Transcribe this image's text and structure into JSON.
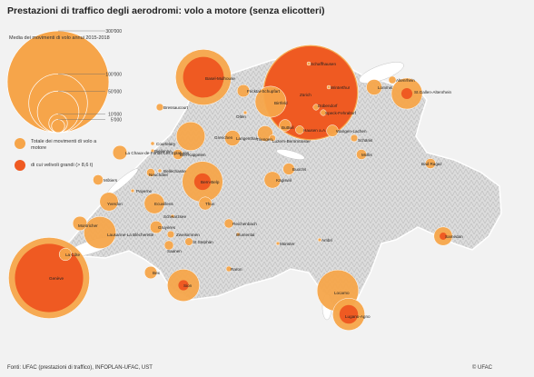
{
  "title": "Prestazioni di traffico degli aerodromi: volo a motore (senza elicotteri)",
  "legend": {
    "subtitle": "Media dei movimenti di volo annui 2015-2018",
    "scale_labels": [
      "300'000",
      "100'000",
      "50'000",
      "10'000",
      "5'000"
    ],
    "scale_values": [
      300000,
      100000,
      50000,
      10000,
      5000
    ],
    "total_label": "Totale dei movimenti di volo a motore",
    "large_label": "di cui velivoli grandi (> 8,6 t)",
    "colors": {
      "total": "#f6a54a",
      "large": "#ef5a22",
      "mountain_light": "#f0f0f0",
      "mountain_dark": "#cfcfcf",
      "lake": "#ffffff"
    }
  },
  "airports": [
    {
      "name": "Schaffhausen",
      "total": 300,
      "large": 0
    },
    {
      "name": "Basel-Mulhouse",
      "total": 90000,
      "large": 48000
    },
    {
      "name": "Fricktal-Schupfart",
      "total": 4500,
      "large": 0
    },
    {
      "name": "Zürich",
      "total": 265000,
      "large": 250000
    },
    {
      "name": "Altenrhein",
      "total": 1600,
      "large": 0
    },
    {
      "name": "Birrfeld",
      "total": 28000,
      "large": 0
    },
    {
      "name": "Winterthur",
      "total": 300,
      "large": 0
    },
    {
      "name": "Lommis",
      "total": 7000,
      "large": 0
    },
    {
      "name": "Dübendorf",
      "total": 1000,
      "large": 0
    },
    {
      "name": "Speck-Fehraltorf",
      "total": 1000,
      "large": 0
    },
    {
      "name": "Bressaucourt",
      "total": 1500,
      "large": 0
    },
    {
      "name": "Olten",
      "total": 300,
      "large": 0
    },
    {
      "name": "Grenchen",
      "total": 24000,
      "large": 0
    },
    {
      "name": "Langenthal",
      "total": 7000,
      "large": 0
    },
    {
      "name": "Hausen a.A.",
      "total": 2000,
      "large": 0
    },
    {
      "name": "Buttwil",
      "total": 4000,
      "large": 0
    },
    {
      "name": "Wangen-Lachen",
      "total": 4000,
      "large": 0
    },
    {
      "name": "Triengen",
      "total": 7000,
      "large": 0
    },
    {
      "name": "Luzern-Beromünster",
      "total": 1200,
      "large": 0
    },
    {
      "name": "Schänis",
      "total": 1500,
      "large": 0
    },
    {
      "name": "Mollis",
      "total": 3000,
      "large": 0
    },
    {
      "name": "La Chaux-de-Fonds-Les Eplatures",
      "total": 6000,
      "large": 0
    },
    {
      "name": "Bielienne",
      "total": 300,
      "large": 0
    },
    {
      "name": "Courtelary",
      "total": 400,
      "large": 0
    },
    {
      "name": "Biel-Kappelen",
      "total": 3000,
      "large": 0
    },
    {
      "name": "Môtiers",
      "total": 3000,
      "large": 0
    },
    {
      "name": "Neuchâtel",
      "total": 2000,
      "large": 0
    },
    {
      "name": "Bellechasse",
      "total": 400,
      "large": 0
    },
    {
      "name": "Bern-Belp",
      "total": 48000,
      "large": 8000
    },
    {
      "name": "Buochs",
      "total": 4000,
      "large": 0
    },
    {
      "name": "Kägiswil",
      "total": 8000,
      "large": 0
    },
    {
      "name": "Bad Ragaz",
      "total": 3000,
      "large": 0
    },
    {
      "name": "Payerne",
      "total": 300,
      "large": 0
    },
    {
      "name": "Yverdon",
      "total": 10000,
      "large": 0
    },
    {
      "name": "Ecuvillens",
      "total": 12000,
      "large": 0
    },
    {
      "name": "Thun",
      "total": 5000,
      "large": 0
    },
    {
      "name": "Schwarzsee",
      "total": 300,
      "large": 0
    },
    {
      "name": "Montricher",
      "total": 6000,
      "large": 0
    },
    {
      "name": "Gruyères",
      "total": 4500,
      "large": 0
    },
    {
      "name": "Reichenbach",
      "total": 2500,
      "large": 0
    },
    {
      "name": "Lausanne-La Blécherette",
      "total": 30000,
      "large": 0
    },
    {
      "name": "Zweisimmen",
      "total": 1500,
      "large": 0
    },
    {
      "name": "Blumental",
      "total": 300,
      "large": 0
    },
    {
      "name": "Samedan",
      "total": 10000,
      "large": 1500
    },
    {
      "name": "St Stephan",
      "total": 1800,
      "large": 0
    },
    {
      "name": "Saanen",
      "total": 2500,
      "large": 0
    },
    {
      "name": "Ambri",
      "total": 300,
      "large": 0
    },
    {
      "name": "Münster",
      "total": 300,
      "large": 0
    },
    {
      "name": "La Côte",
      "total": 4500,
      "large": 0
    },
    {
      "name": "Genève",
      "total": 190000,
      "large": 135000
    },
    {
      "name": "Raron",
      "total": 900,
      "large": 0
    },
    {
      "name": "Bex",
      "total": 4500,
      "large": 0
    },
    {
      "name": "Sion",
      "total": 30000,
      "large": 3000
    },
    {
      "name": "Locarno",
      "total": 50000,
      "large": 0
    },
    {
      "name": "Lugano-Agno",
      "total": 30000,
      "large": 10000
    },
    {
      "name": "St.Gallen-Altenrhein",
      "total": 28000,
      "large": 3500
    }
  ],
  "source": "Fonti: UFAC (prestazioni di traffico), INFOPLAN-UFAC, UST",
  "copyright": "© UFAC"
}
